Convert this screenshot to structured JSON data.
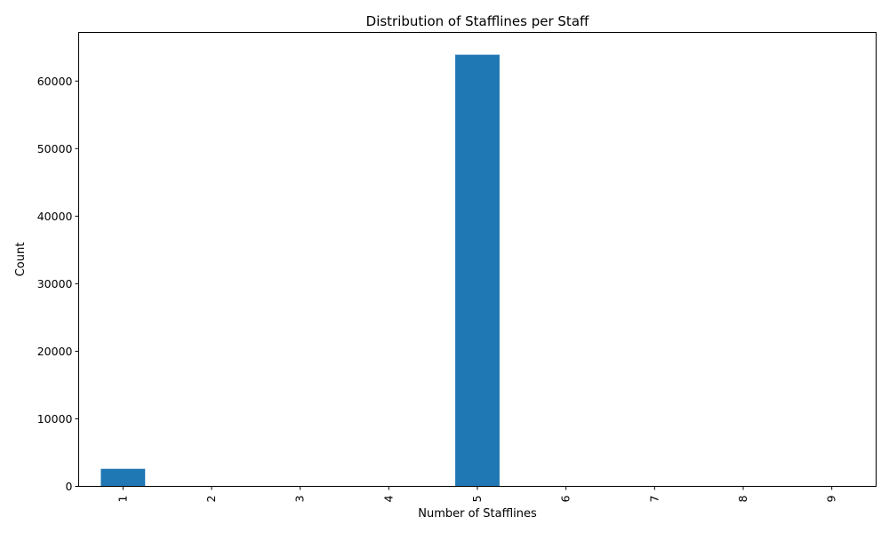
{
  "chart_data": {
    "type": "bar",
    "title": "Distribution of Stafflines per Staff",
    "xlabel": "Number of Stafflines",
    "ylabel": "Count",
    "categories": [
      "1",
      "2",
      "3",
      "4",
      "5",
      "6",
      "7",
      "8",
      "9"
    ],
    "values": [
      2600,
      15,
      10,
      5,
      63900,
      10,
      5,
      2,
      2
    ],
    "ylim": [
      0,
      67200
    ],
    "yticks": [
      0,
      10000,
      20000,
      30000,
      40000,
      50000,
      60000
    ],
    "ytick_labels": [
      "0",
      "10000",
      "20000",
      "30000",
      "40000",
      "50000",
      "60000"
    ],
    "bar_color": "#1f77b4",
    "grid": false,
    "x_tick_rotation": "vertical"
  }
}
